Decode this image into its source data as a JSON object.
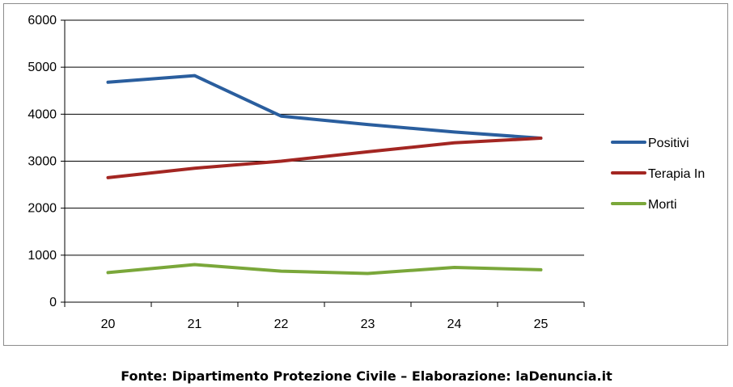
{
  "chart_data": {
    "type": "line",
    "categories": [
      "20",
      "21",
      "22",
      "23",
      "24",
      "25"
    ],
    "series": [
      {
        "name": "Positivi",
        "color": "#2a5e9e",
        "values": [
          4680,
          4820,
          3960,
          3780,
          3620,
          3490
        ]
      },
      {
        "name": "Terapia In",
        "color": "#a32622",
        "values": [
          2650,
          2850,
          3000,
          3200,
          3390,
          3490
        ]
      },
      {
        "name": "Morti",
        "color": "#7aa73a",
        "values": [
          630,
          800,
          660,
          610,
          740,
          690
        ]
      }
    ],
    "ylim": [
      0,
      6000
    ],
    "yticks": [
      "0",
      "1000",
      "2000",
      "3000",
      "4000",
      "5000",
      "6000"
    ],
    "grid": "horizontal",
    "legend_position": "right"
  },
  "caption": "Fonte: Dipartimento Protezione Civile – Elaborazione: laDenuncia.it"
}
